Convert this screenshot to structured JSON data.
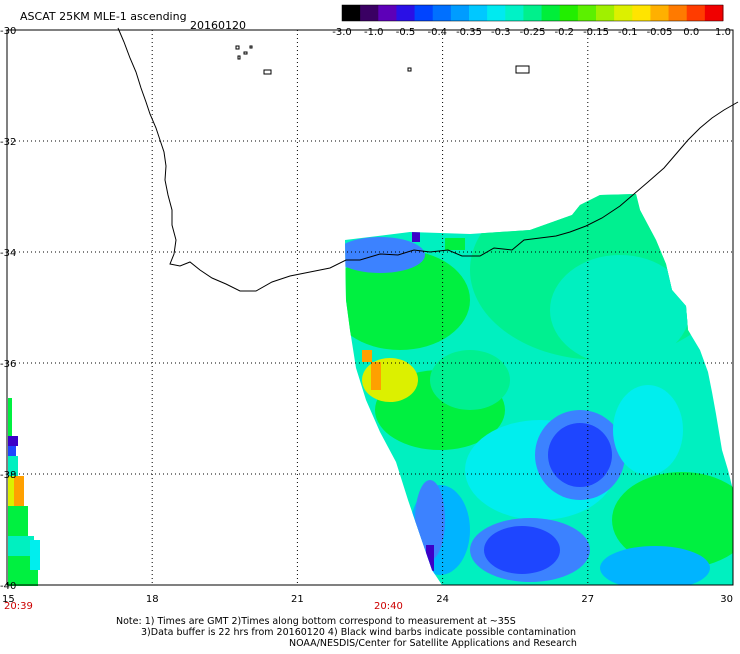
{
  "header": {
    "title": "ASCAT 25KM MLE-1 ascending",
    "date": "20160120"
  },
  "colorbar": {
    "labels": [
      "-3.0",
      "-1.0",
      "-0.5",
      "-0.4",
      "-0.35",
      "-0.3",
      "-0.25",
      "-0.2",
      "-0.15",
      "-0.1",
      "-0.05",
      "0.0",
      "1.0"
    ],
    "colors": [
      "#000000",
      "#3a0063",
      "#5d00b8",
      "#2a10e6",
      "#0044ff",
      "#0070ff",
      "#009cff",
      "#00c8ff",
      "#00eaf0",
      "#00f2c6",
      "#00f08c",
      "#00ee3a",
      "#22ee00",
      "#5cf000",
      "#a0f000",
      "#dcf000",
      "#ffe400",
      "#ffb000",
      "#ff7a00",
      "#ff3c00",
      "#f00000"
    ]
  },
  "axes": {
    "lat_labels": [
      "-30",
      "-32",
      "-34",
      "-36",
      "-38",
      "-40"
    ],
    "lon_labels": [
      "15",
      "18",
      "21",
      "24",
      "27",
      "30"
    ]
  },
  "times": {
    "left": "20:39",
    "middle": "20:40"
  },
  "palette": {
    "blue": "#1e46ff",
    "dblue": "#1432e6",
    "purple": "#3c00c8",
    "lblue": "#3c82ff",
    "sky": "#00b4ff",
    "cyan": "#00eeee",
    "aqua": "#00f0c0",
    "teal": "#00f090",
    "green": "#00f040",
    "lgreen": "#40f040",
    "yellow": "#dcf000",
    "orange": "#ffa000",
    "time_label": "#cc0000"
  },
  "notes": {
    "line1": "Note: 1) Times are GMT 2)Times along bottom correspond to measurement at ~35S",
    "line2": "3)Data buffer is 22 hrs from 20160120 4) Black wind barbs indicate possible contamination",
    "line3": "NOAA/NESDIS/Center for Satellite Applications and Research"
  }
}
